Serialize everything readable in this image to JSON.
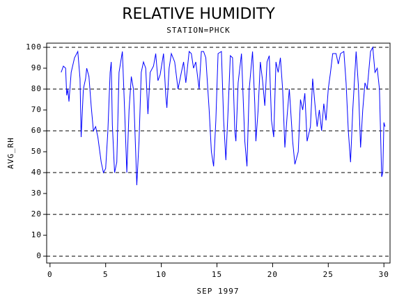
{
  "chart_data": {
    "type": "line",
    "title": "RELATIVE HUMIDITY",
    "subtitle": "STATION=PHCK",
    "y_label": "AVG_RH",
    "x_label": "SEP 1997",
    "xlim": [
      -0.3,
      30.55
    ],
    "ylim": [
      -3.3,
      102
    ],
    "xticks": [
      0,
      5,
      10,
      15,
      20,
      25,
      30
    ],
    "yticks": [
      0,
      10,
      20,
      30,
      40,
      50,
      60,
      70,
      80,
      90,
      100
    ],
    "grid_values": [
      0,
      20,
      40,
      60,
      80,
      100
    ],
    "color": "#0000ff",
    "x": [
      1.0,
      1.2,
      1.4,
      1.5,
      1.6,
      1.7,
      1.9,
      2.2,
      2.5,
      2.7,
      2.8,
      3.0,
      3.2,
      3.3,
      3.5,
      3.7,
      3.9,
      4.1,
      4.3,
      4.6,
      4.8,
      5.0,
      5.2,
      5.4,
      5.5,
      5.6,
      5.8,
      6.0,
      6.2,
      6.5,
      6.7,
      6.9,
      7.1,
      7.3,
      7.5,
      7.7,
      7.8,
      8.0,
      8.2,
      8.4,
      8.6,
      8.8,
      9.0,
      9.3,
      9.5,
      9.7,
      9.9,
      10.2,
      10.4,
      10.5,
      10.7,
      10.9,
      11.2,
      11.5,
      11.8,
      12.0,
      12.2,
      12.5,
      12.7,
      12.9,
      13.1,
      13.4,
      13.6,
      13.8,
      14.0,
      14.3,
      14.5,
      14.7,
      14.9,
      15.1,
      15.4,
      15.6,
      15.8,
      16.0,
      16.2,
      16.4,
      16.6,
      16.7,
      16.9,
      17.2,
      17.5,
      17.7,
      17.9,
      18.2,
      18.4,
      18.5,
      18.7,
      18.9,
      19.1,
      19.3,
      19.5,
      19.7,
      19.9,
      20.1,
      20.3,
      20.5,
      20.7,
      20.9,
      21.1,
      21.3,
      21.5,
      21.8,
      22.0,
      22.3,
      22.5,
      22.7,
      22.9,
      23.1,
      23.4,
      23.6,
      23.8,
      24.0,
      24.2,
      24.4,
      24.6,
      24.8,
      25.0,
      25.2,
      25.4,
      25.7,
      25.9,
      26.1,
      26.4,
      26.6,
      26.8,
      27.0,
      27.2,
      27.5,
      27.7,
      27.9,
      28.1,
      28.3,
      28.5,
      28.8,
      29.0,
      29.2,
      29.4,
      29.6,
      29.8,
      29.9,
      30.0,
      30.1
    ],
    "values": [
      88,
      91,
      90,
      77,
      80,
      74,
      88,
      95,
      98,
      85,
      57,
      80,
      85,
      90,
      86,
      72,
      60,
      62,
      57,
      45,
      40,
      42,
      60,
      88,
      93,
      63,
      40,
      45,
      88,
      98,
      70,
      40,
      70,
      86,
      80,
      50,
      34,
      55,
      88,
      93,
      90,
      68,
      88,
      91,
      97,
      84,
      87,
      97,
      77,
      71,
      90,
      97,
      93,
      80,
      88,
      93,
      83,
      98,
      97,
      90,
      93,
      80,
      98,
      98,
      95,
      70,
      50,
      43,
      65,
      97,
      98,
      65,
      46,
      70,
      96,
      95,
      60,
      55,
      83,
      97,
      55,
      43,
      80,
      98,
      73,
      55,
      70,
      93,
      84,
      72,
      93,
      96,
      65,
      57,
      93,
      88,
      95,
      80,
      52,
      67,
      80,
      55,
      44,
      50,
      75,
      70,
      78,
      55,
      62,
      85,
      73,
      62,
      70,
      60,
      73,
      65,
      80,
      88,
      97,
      97,
      92,
      97,
      98,
      83,
      60,
      45,
      70,
      98,
      82,
      52,
      70,
      83,
      80,
      98,
      100,
      88,
      90,
      80,
      38,
      40,
      64,
      62
    ]
  }
}
